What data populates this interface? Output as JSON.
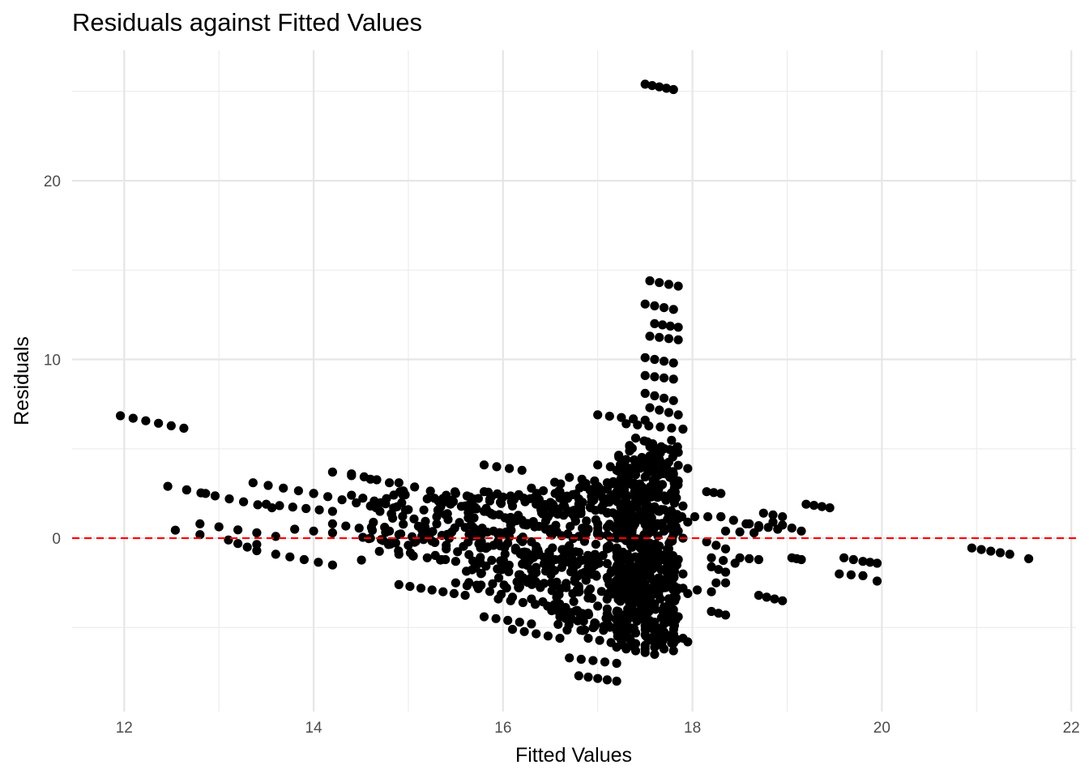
{
  "chart_data": {
    "type": "scatter",
    "title": "Residuals against Fitted Values",
    "xlabel": "Fitted Values",
    "ylabel": "Residuals",
    "xlim": [
      11.45,
      22.05
    ],
    "ylim": [
      -9.7,
      27.3
    ],
    "x_ticks": [
      12,
      14,
      16,
      18,
      20,
      22
    ],
    "x_tick_labels": [
      "12",
      "14",
      "16",
      "18",
      "20",
      "22"
    ],
    "y_ticks": [
      0,
      10,
      20
    ],
    "y_tick_labels": [
      "0",
      "10",
      "20"
    ],
    "x_minor_ticks": [
      13,
      15,
      17,
      19,
      21
    ],
    "y_minor_ticks": [
      -5,
      5,
      15,
      25
    ],
    "grid": true,
    "legend": "none",
    "reference_line": {
      "y": 0,
      "style": "dashed",
      "color": "#ff0000"
    },
    "point_color": "#000000",
    "point_runs": [
      {
        "x": [
          11.96,
          12.63
        ],
        "y": [
          6.85,
          6.15
        ],
        "n": 6
      },
      {
        "x": [
          12.46,
          12.86
        ],
        "y": [
          2.9,
          2.5
        ],
        "n": 3
      },
      {
        "x": [
          12.66,
          13.56
        ],
        "y": [
          2.7,
          1.7
        ],
        "n": 7
      },
      {
        "x": [
          12.54,
          12.54
        ],
        "y": [
          0.45,
          0.45
        ],
        "n": 1
      },
      {
        "x": [
          12.8,
          13.4
        ],
        "y": [
          0.8,
          0.3
        ],
        "n": 4
      },
      {
        "x": [
          12.8,
          12.8
        ],
        "y": [
          0.2,
          0.2
        ],
        "n": 1
      },
      {
        "x": [
          13.1,
          13.4
        ],
        "y": [
          -0.1,
          -0.7
        ],
        "n": 4
      },
      {
        "x": [
          13.4,
          13.6
        ],
        "y": [
          -0.35,
          0.1
        ],
        "n": 2
      },
      {
        "x": [
          13.36,
          14.0
        ],
        "y": [
          3.1,
          2.5
        ],
        "n": 5
      },
      {
        "x": [
          13.5,
          14.2
        ],
        "y": [
          1.9,
          1.5
        ],
        "n": 6
      },
      {
        "x": [
          13.6,
          14.2
        ],
        "y": [
          -0.9,
          -1.5
        ],
        "n": 5
      },
      {
        "x": [
          13.8,
          14.2
        ],
        "y": [
          0.5,
          0.3
        ],
        "n": 3
      },
      {
        "x": [
          14.0,
          14.6
        ],
        "y": [
          2.5,
          1.8
        ],
        "n": 5
      },
      {
        "x": [
          14.2,
          14.6
        ],
        "y": [
          3.7,
          3.3
        ],
        "n": 3
      },
      {
        "x": [
          14.4,
          14.8
        ],
        "y": [
          3.6,
          3.1
        ],
        "n": 4
      },
      {
        "x": [
          14.2,
          14.9
        ],
        "y": [
          0.8,
          0.2
        ],
        "n": 6
      },
      {
        "x": [
          14.4,
          15.0
        ],
        "y": [
          2.4,
          1.6
        ],
        "n": 6
      },
      {
        "x": [
          14.6,
          15.0
        ],
        "y": [
          0.0,
          -0.4
        ],
        "n": 4
      },
      {
        "x": [
          14.9,
          15.4
        ],
        "y": [
          3.1,
          2.4
        ],
        "n": 4
      },
      {
        "x": [
          14.7,
          15.3
        ],
        "y": [
          1.5,
          0.8
        ],
        "n": 6
      },
      {
        "x": [
          14.8,
          15.4
        ],
        "y": [
          0.4,
          -0.4
        ],
        "n": 6
      },
      {
        "x": [
          14.9,
          15.5
        ],
        "y": [
          -0.9,
          -1.3
        ],
        "n": 5
      },
      {
        "x": [
          14.9,
          15.6
        ],
        "y": [
          -2.6,
          -3.2
        ],
        "n": 7
      },
      {
        "x": [
          15.2,
          15.8
        ],
        "y": [
          2.2,
          1.5
        ],
        "n": 6
      },
      {
        "x": [
          15.3,
          15.9
        ],
        "y": [
          1.2,
          0.4
        ],
        "n": 6
      },
      {
        "x": [
          15.4,
          16.0
        ],
        "y": [
          -0.6,
          -1.4
        ],
        "n": 6
      },
      {
        "x": [
          15.5,
          16.1
        ],
        "y": [
          2.5,
          1.8
        ],
        "n": 6
      },
      {
        "x": [
          15.5,
          16.1
        ],
        "y": [
          -2.5,
          -3.3
        ],
        "n": 6
      },
      {
        "x": [
          15.6,
          16.2
        ],
        "y": [
          1.8,
          1.0
        ],
        "n": 6
      },
      {
        "x": [
          15.6,
          16.3
        ],
        "y": [
          0.6,
          -0.2
        ],
        "n": 7
      },
      {
        "x": [
          15.7,
          16.3
        ],
        "y": [
          -1.4,
          -2.2
        ],
        "n": 6
      },
      {
        "x": [
          15.8,
          16.2
        ],
        "y": [
          4.1,
          3.8
        ],
        "n": 4
      },
      {
        "x": [
          15.8,
          16.5
        ],
        "y": [
          2.6,
          2.0
        ],
        "n": 6
      },
      {
        "x": [
          15.9,
          16.5
        ],
        "y": [
          1.3,
          0.5
        ],
        "n": 6
      },
      {
        "x": [
          15.9,
          16.6
        ],
        "y": [
          -0.4,
          -1.2
        ],
        "n": 7
      },
      {
        "x": [
          15.95,
          16.6
        ],
        "y": [
          -3.4,
          -3.9
        ],
        "n": 6
      },
      {
        "x": [
          15.8,
          16.3
        ],
        "y": [
          -4.4,
          -4.8
        ],
        "n": 5
      },
      {
        "x": [
          16.1,
          16.6
        ],
        "y": [
          -5.1,
          -5.6
        ],
        "n": 5
      },
      {
        "x": [
          16.0,
          16.7
        ],
        "y": [
          2.3,
          1.5
        ],
        "n": 7
      },
      {
        "x": [
          16.1,
          16.8
        ],
        "y": [
          0.9,
          0.1
        ],
        "n": 7
      },
      {
        "x": [
          16.2,
          16.9
        ],
        "y": [
          -0.8,
          -1.6
        ],
        "n": 7
      },
      {
        "x": [
          16.2,
          16.9
        ],
        "y": [
          -2.3,
          -3.0
        ],
        "n": 7
      },
      {
        "x": [
          16.3,
          16.9
        ],
        "y": [
          -3.4,
          -4.2
        ],
        "n": 6
      },
      {
        "x": [
          16.3,
          16.8
        ],
        "y": [
          2.8,
          2.2
        ],
        "n": 5
      },
      {
        "x": [
          16.4,
          17.0
        ],
        "y": [
          1.6,
          0.8
        ],
        "n": 6
      },
      {
        "x": [
          16.5,
          17.1
        ],
        "y": [
          0.3,
          -0.5
        ],
        "n": 6
      },
      {
        "x": [
          16.5,
          17.1
        ],
        "y": [
          -1.5,
          -2.2
        ],
        "n": 6
      },
      {
        "x": [
          16.6,
          17.1
        ],
        "y": [
          -4.4,
          -4.9
        ],
        "n": 5
      },
      {
        "x": [
          16.7,
          17.2
        ],
        "y": [
          -6.7,
          -7.0
        ],
        "n": 5
      },
      {
        "x": [
          16.8,
          17.2
        ],
        "y": [
          -7.7,
          -8.0
        ],
        "n": 5
      },
      {
        "x": [
          16.7,
          17.1
        ],
        "y": [
          3.4,
          3.1
        ],
        "n": 4
      },
      {
        "x": [
          16.6,
          17.1
        ],
        "y": [
          2.6,
          2.2
        ],
        "n": 4
      },
      {
        "x": [
          16.8,
          17.4
        ],
        "y": [
          1.9,
          1.1
        ],
        "n": 6
      },
      {
        "x": [
          16.8,
          17.4
        ],
        "y": [
          -2.7,
          -3.4
        ],
        "n": 6
      },
      {
        "x": [
          16.9,
          17.4
        ],
        "y": [
          0.5,
          -0.3
        ],
        "n": 6
      },
      {
        "x": [
          16.9,
          17.4
        ],
        "y": [
          -1.1,
          -1.9
        ],
        "n": 6
      },
      {
        "x": [
          16.9,
          17.5
        ],
        "y": [
          -5.6,
          -6.2
        ],
        "n": 6
      },
      {
        "x": [
          17.0,
          17.4
        ],
        "y": [
          4.1,
          3.8
        ],
        "n": 4
      },
      {
        "x": [
          17.0,
          17.5
        ],
        "y": [
          2.9,
          2.1
        ],
        "n": 6
      },
      {
        "x": [
          17.0,
          17.5
        ],
        "y": [
          -3.8,
          -4.6
        ],
        "n": 6
      },
      {
        "x": [
          17.1,
          17.6
        ],
        "y": [
          1.4,
          0.6
        ],
        "n": 6
      },
      {
        "x": [
          17.1,
          17.6
        ],
        "y": [
          -0.6,
          -1.4
        ],
        "n": 6
      },
      {
        "x": [
          17.1,
          17.6
        ],
        "y": [
          -2.2,
          -3.0
        ],
        "n": 6
      },
      {
        "x": [
          17.2,
          17.6
        ],
        "y": [
          3.8,
          3.3
        ],
        "n": 5
      },
      {
        "x": [
          17.2,
          17.7
        ],
        "y": [
          2.4,
          1.6
        ],
        "n": 6
      },
      {
        "x": [
          17.2,
          17.7
        ],
        "y": [
          -5.1,
          -5.6
        ],
        "n": 6
      },
      {
        "x": [
          17.2,
          17.6
        ],
        "y": [
          -6.1,
          -6.5
        ],
        "n": 5
      },
      {
        "x": [
          17.25,
          17.75
        ],
        "y": [
          0.2,
          -0.6
        ],
        "n": 6
      },
      {
        "x": [
          17.25,
          17.75
        ],
        "y": [
          -1.6,
          -2.4
        ],
        "n": 6
      },
      {
        "x": [
          17.3,
          17.8
        ],
        "y": [
          -3.2,
          -4.0
        ],
        "n": 6
      },
      {
        "x": [
          17.3,
          17.7
        ],
        "y": [
          -4.4,
          -4.8
        ],
        "n": 5
      },
      {
        "x": [
          17.3,
          17.8
        ],
        "y": [
          4.4,
          3.6
        ],
        "n": 6
      },
      {
        "x": [
          17.3,
          17.8
        ],
        "y": [
          3.0,
          2.2
        ],
        "n": 6
      },
      {
        "x": [
          17.35,
          17.85
        ],
        "y": [
          1.2,
          0.4
        ],
        "n": 6
      },
      {
        "x": [
          17.35,
          17.85
        ],
        "y": [
          -0.4,
          -1.2
        ],
        "n": 6
      },
      {
        "x": [
          17.4,
          17.85
        ],
        "y": [
          -2.0,
          -2.8
        ],
        "n": 6
      },
      {
        "x": [
          17.4,
          17.8
        ],
        "y": [
          -5.9,
          -6.3
        ],
        "n": 5
      },
      {
        "x": [
          17.4,
          17.85
        ],
        "y": [
          5.6,
          4.8
        ],
        "n": 6
      },
      {
        "x": [
          17.45,
          17.9
        ],
        "y": [
          2.6,
          1.8
        ],
        "n": 6
      },
      {
        "x": [
          17.45,
          17.9
        ],
        "y": [
          -1.2,
          -2.0
        ],
        "n": 6
      },
      {
        "x": [
          17.45,
          17.85
        ],
        "y": [
          -3.7,
          -4.4
        ],
        "n": 6
      },
      {
        "x": [
          17.5,
          17.85
        ],
        "y": [
          4.0,
          3.2
        ],
        "n": 5
      },
      {
        "x": [
          17.5,
          17.9
        ],
        "y": [
          0.8,
          0.0
        ],
        "n": 5
      },
      {
        "x": [
          17.5,
          17.9
        ],
        "y": [
          -4.9,
          -5.6
        ],
        "n": 5
      },
      {
        "x": [
          17.0,
          17.5
        ],
        "y": [
          6.9,
          6.6
        ],
        "n": 5
      },
      {
        "x": [
          17.3,
          17.9
        ],
        "y": [
          6.4,
          6.1
        ],
        "n": 6
      },
      {
        "x": [
          17.55,
          17.95
        ],
        "y": [
          4.6,
          3.9
        ],
        "n": 5
      },
      {
        "x": [
          17.55,
          17.95
        ],
        "y": [
          1.7,
          0.9
        ],
        "n": 5
      },
      {
        "x": [
          17.6,
          17.95
        ],
        "y": [
          -2.6,
          -3.1
        ],
        "n": 4
      },
      {
        "x": [
          17.6,
          17.95
        ],
        "y": [
          -5.4,
          -5.8
        ],
        "n": 4
      },
      {
        "x": [
          17.55,
          17.85
        ],
        "y": [
          7.3,
          6.9
        ],
        "n": 4
      },
      {
        "x": [
          17.5,
          17.8
        ],
        "y": [
          8.1,
          7.7
        ],
        "n": 4
      },
      {
        "x": [
          17.5,
          17.8
        ],
        "y": [
          9.1,
          8.9
        ],
        "n": 4
      },
      {
        "x": [
          17.5,
          17.8
        ],
        "y": [
          10.1,
          9.8
        ],
        "n": 4
      },
      {
        "x": [
          17.55,
          17.85
        ],
        "y": [
          11.3,
          11.1
        ],
        "n": 4
      },
      {
        "x": [
          17.6,
          17.85
        ],
        "y": [
          12.0,
          11.8
        ],
        "n": 4
      },
      {
        "x": [
          17.5,
          17.8
        ],
        "y": [
          13.1,
          12.8
        ],
        "n": 4
      },
      {
        "x": [
          17.55,
          17.85
        ],
        "y": [
          14.4,
          14.1
        ],
        "n": 4
      },
      {
        "x": [
          17.5,
          17.8
        ],
        "y": [
          25.4,
          25.1
        ],
        "n": 5
      },
      {
        "x": [
          17.75,
          18.3
        ],
        "y": [
          1.2,
          1.2
        ],
        "n": 5
      },
      {
        "x": [
          17.9,
          18.2
        ],
        "y": [
          -2.8,
          -3.0
        ],
        "n": 3
      },
      {
        "x": [
          18.15,
          18.3
        ],
        "y": [
          2.6,
          2.5
        ],
        "n": 3
      },
      {
        "x": [
          18.15,
          18.35
        ],
        "y": [
          -0.2,
          -0.6
        ],
        "n": 3
      },
      {
        "x": [
          18.2,
          18.35
        ],
        "y": [
          -1.6,
          -1.9
        ],
        "n": 3
      },
      {
        "x": [
          18.25,
          18.35
        ],
        "y": [
          -2.5,
          -2.5
        ],
        "n": 2
      },
      {
        "x": [
          18.2,
          18.35
        ],
        "y": [
          -4.1,
          -4.3
        ],
        "n": 3
      },
      {
        "x": [
          18.3,
          18.7
        ],
        "y": [
          1.2,
          0.6
        ],
        "n": 4
      },
      {
        "x": [
          18.35,
          18.65
        ],
        "y": [
          0.4,
          0.3
        ],
        "n": 3
      },
      {
        "x": [
          18.5,
          18.7
        ],
        "y": [
          -1.1,
          -1.2
        ],
        "n": 3
      },
      {
        "x": [
          18.6,
          18.9
        ],
        "y": [
          0.8,
          0.5
        ],
        "n": 4
      },
      {
        "x": [
          18.85,
          19.15
        ],
        "y": [
          0.9,
          0.4
        ],
        "n": 4
      },
      {
        "x": [
          18.75,
          18.95
        ],
        "y": [
          1.4,
          1.2
        ],
        "n": 3
      },
      {
        "x": [
          18.7,
          18.95
        ],
        "y": [
          -3.2,
          -3.5
        ],
        "n": 4
      },
      {
        "x": [
          18.2,
          18.45
        ],
        "y": [
          -1.1,
          -1.4
        ],
        "n": 3
      },
      {
        "x": [
          19.05,
          19.15
        ],
        "y": [
          -1.1,
          -1.2
        ],
        "n": 3
      },
      {
        "x": [
          19.2,
          19.45
        ],
        "y": [
          1.9,
          1.7
        ],
        "n": 4
      },
      {
        "x": [
          19.6,
          19.7
        ],
        "y": [
          -1.1,
          -1.2
        ],
        "n": 2
      },
      {
        "x": [
          19.55,
          19.8
        ],
        "y": [
          -2.0,
          -2.1
        ],
        "n": 3
      },
      {
        "x": [
          19.8,
          19.95
        ],
        "y": [
          -1.3,
          -1.4
        ],
        "n": 3
      },
      {
        "x": [
          19.95,
          19.95
        ],
        "y": [
          -2.4,
          -2.4
        ],
        "n": 1
      },
      {
        "x": [
          20.95,
          21.35
        ],
        "y": [
          -0.55,
          -0.9
        ],
        "n": 5
      },
      {
        "x": [
          21.55,
          21.55
        ],
        "y": [
          -1.15,
          -1.15
        ],
        "n": 1
      }
    ],
    "dense_blocks": [
      {
        "x": [
          16.5,
          17.55
        ],
        "y": [
          -5.2,
          3.2
        ],
        "n": 260
      },
      {
        "x": [
          17.2,
          17.85
        ],
        "y": [
          -6.0,
          5.5
        ],
        "n": 320
      },
      {
        "x": [
          15.6,
          16.5
        ],
        "y": [
          -2.8,
          2.6
        ],
        "n": 110
      },
      {
        "x": [
          14.5,
          15.7
        ],
        "y": [
          -1.3,
          3.0
        ],
        "n": 70
      }
    ]
  }
}
